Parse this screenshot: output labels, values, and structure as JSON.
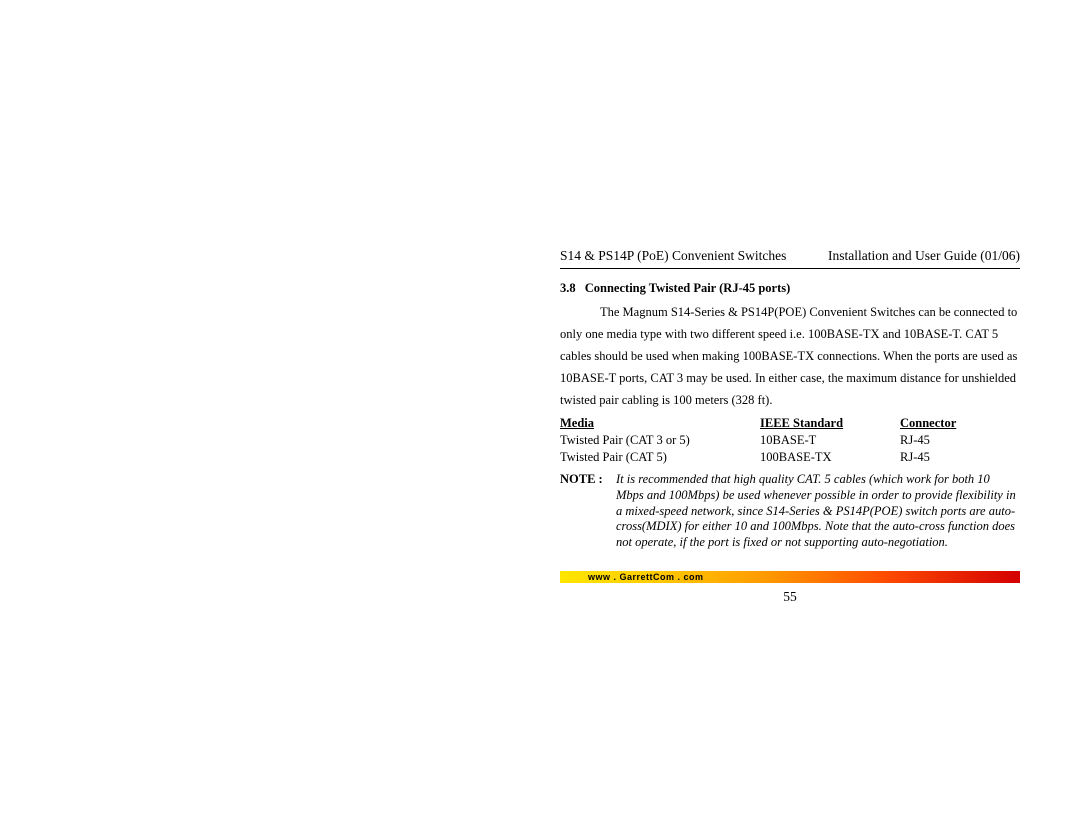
{
  "header": {
    "left": "S14 & PS14P (PoE) Convenient Switches",
    "right": "Installation and User Guide (01/06)"
  },
  "section": {
    "number": "3.8",
    "title": "Connecting Twisted Pair (RJ-45 ports)",
    "body": "The Magnum S14-Series & PS14P(POE) Convenient Switches can be connected to only one media type with two different speed i.e. 100BASE-TX and 10BASE-T.  CAT 5 cables should be used when making 100BASE-TX connections. When the ports are used as 10BASE-T ports, CAT 3 may be used.  In either case, the maximum distance for unshielded twisted pair cabling is 100 meters (328 ft)."
  },
  "table": {
    "headers": {
      "media": "Media",
      "standard": "IEEE Standard",
      "connector": "Connector"
    },
    "rows": [
      {
        "media": "Twisted Pair (CAT 3 or 5)",
        "standard": "10BASE-T",
        "connector": "RJ-45"
      },
      {
        "media": "Twisted Pair (CAT 5)",
        "standard": "100BASE-TX",
        "connector": "RJ-45"
      }
    ]
  },
  "note": {
    "label": "NOTE :",
    "text": "It is recommended that high quality CAT. 5 cables (which work for both 10 Mbps and 100Mbps) be used whenever possible in order to provide flexibility in a mixed-speed network, since S14-Series & PS14P(POE) switch ports are auto-cross(MDIX) for either 10 and 100Mbps. Note that the auto-cross function does not operate, if the port is fixed or not supporting auto-negotiation."
  },
  "footer": {
    "url": "www . GarrettCom . com",
    "page_number": "55"
  }
}
